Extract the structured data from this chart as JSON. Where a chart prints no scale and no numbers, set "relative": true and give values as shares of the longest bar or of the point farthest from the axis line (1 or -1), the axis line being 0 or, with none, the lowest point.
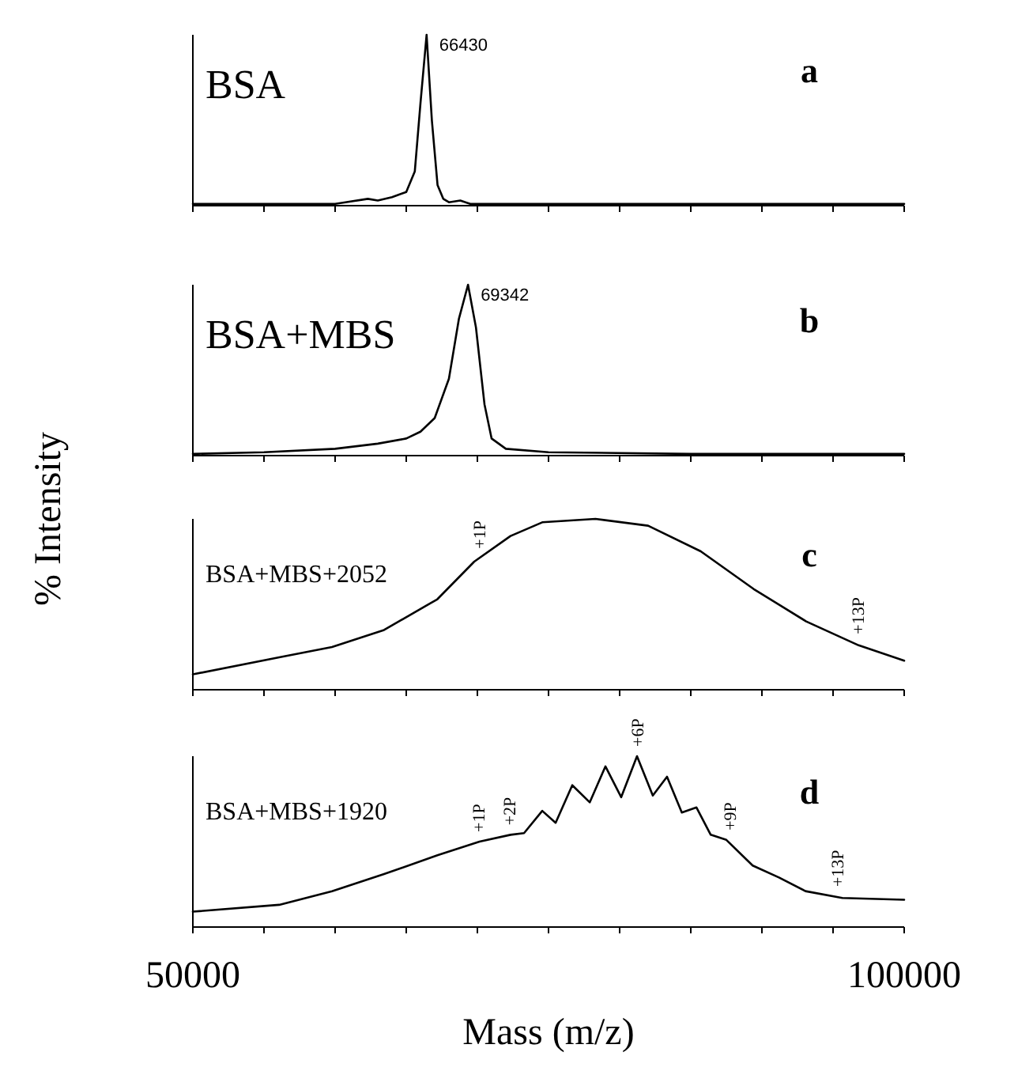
{
  "chart_data": [
    {
      "type": "line",
      "title": "BSA",
      "color": "#000000",
      "relative": true,
      "xlim": [
        50000,
        100000
      ],
      "tick_labels": false,
      "xticks": [
        {
          "value": 50000,
          "label": null
        },
        {
          "value": 55000,
          "label": null
        },
        {
          "value": 60000,
          "label": null
        },
        {
          "value": 65000,
          "label": null
        },
        {
          "value": 70000,
          "label": null
        },
        {
          "value": 75000,
          "label": null
        },
        {
          "value": 80000,
          "label": null
        },
        {
          "value": 85000,
          "label": null
        },
        {
          "value": 90000,
          "label": null
        },
        {
          "value": 95000,
          "label": null
        },
        {
          "value": 100000,
          "label": null
        }
      ],
      "x": [
        50000,
        55000,
        60000,
        62300,
        63000,
        64000,
        65000,
        65600,
        66000,
        66430,
        66800,
        67200,
        67600,
        68000,
        68800,
        69500,
        70000,
        80000,
        90000,
        100000
      ],
      "values": [
        0.01,
        0.01,
        0.01,
        0.04,
        0.03,
        0.05,
        0.08,
        0.2,
        0.6,
        1,
        0.5,
        0.12,
        0.04,
        0.02,
        0.03,
        0.01,
        0.01,
        0.01,
        0.01,
        0.01
      ],
      "annotations": [
        {
          "text": "66430",
          "x": 66430,
          "y": 1
        },
        "a"
      ]
    },
    {
      "type": "line",
      "title": "BSA+MBS",
      "color": "#000000",
      "relative": true,
      "xlim": [
        50000,
        100000
      ],
      "tick_labels": false,
      "xticks": [
        {
          "value": 50000,
          "label": null
        },
        {
          "value": 55000,
          "label": null
        },
        {
          "value": 60000,
          "label": null
        },
        {
          "value": 65000,
          "label": null
        },
        {
          "value": 70000,
          "label": null
        },
        {
          "value": 75000,
          "label": null
        },
        {
          "value": 80000,
          "label": null
        },
        {
          "value": 85000,
          "label": null
        },
        {
          "value": 90000,
          "label": null
        },
        {
          "value": 95000,
          "label": null
        },
        {
          "value": 100000,
          "label": null
        }
      ],
      "x": [
        50000,
        55000,
        60000,
        63000,
        65000,
        66000,
        67000,
        68000,
        68700,
        69342,
        69900,
        70500,
        71000,
        72000,
        75000,
        85000,
        100000
      ],
      "values": [
        0.01,
        0.02,
        0.04,
        0.07,
        0.1,
        0.14,
        0.22,
        0.45,
        0.8,
        1,
        0.75,
        0.3,
        0.1,
        0.04,
        0.02,
        0.01,
        0.01
      ],
      "annotations": [
        {
          "text": "69342",
          "x": 69342,
          "y": 1
        },
        "b"
      ]
    },
    {
      "type": "line",
      "title": "BSA+MBS+2052",
      "ylabel": "% Intensity",
      "color": "#000000",
      "relative": true,
      "xlim": [
        50000,
        100000
      ],
      "tick_labels": false,
      "xticks": [
        {
          "value": 50000,
          "label": null
        },
        {
          "value": 55000,
          "label": null
        },
        {
          "value": 60000,
          "label": null
        },
        {
          "value": 65000,
          "label": null
        },
        {
          "value": 70000,
          "label": null
        },
        {
          "value": 75000,
          "label": null
        },
        {
          "value": 80000,
          "label": null
        },
        {
          "value": 85000,
          "label": null
        },
        {
          "value": 90000,
          "label": null
        },
        {
          "value": 95000,
          "label": null
        },
        {
          "value": 100000,
          "label": null
        }
      ],
      "x": [
        50000,
        56070,
        59780,
        63440,
        67190,
        69780,
        72330,
        74560,
        78300,
        82000,
        85700,
        89410,
        93110,
        96800,
        100000
      ],
      "values": [
        0.09,
        0.19,
        0.25,
        0.35,
        0.53,
        0.75,
        0.9,
        0.98,
        1,
        0.96,
        0.81,
        0.59,
        0.4,
        0.26,
        0.17
      ],
      "annotations": [
        {
          "text": "+1P",
          "x": 70100,
          "y": 0.77
        },
        {
          "text": "+13P",
          "x": 96700,
          "y": 0.27
        },
        "c"
      ]
    },
    {
      "type": "line",
      "title": "BSA+MBS+1920",
      "xlabel": "Mass (m/z)",
      "color": "#000000",
      "relative": true,
      "xlim": [
        50000,
        100000
      ],
      "tick_labels": "x",
      "xticks": [
        {
          "value": 50000,
          "label": "50000"
        },
        {
          "value": 55000,
          "label": null
        },
        {
          "value": 60000,
          "label": null
        },
        {
          "value": 65000,
          "label": null
        },
        {
          "value": 70000,
          "label": null
        },
        {
          "value": 75000,
          "label": null
        },
        {
          "value": 80000,
          "label": null
        },
        {
          "value": 85000,
          "label": null
        },
        {
          "value": 90000,
          "label": null
        },
        {
          "value": 95000,
          "label": null
        },
        {
          "value": 100000,
          "label": "100000"
        }
      ],
      "x": [
        50000,
        56070,
        59780,
        63440,
        67190,
        70150,
        72330,
        73280,
        74560,
        75500,
        76670,
        77900,
        79000,
        80110,
        81220,
        82330,
        83330,
        84370,
        85400,
        86400,
        87500,
        89350,
        91200,
        93060,
        95650,
        100000
      ],
      "values": [
        0.09,
        0.13,
        0.21,
        0.31,
        0.42,
        0.5,
        0.54,
        0.55,
        0.68,
        0.61,
        0.83,
        0.73,
        0.94,
        0.76,
        1,
        0.77,
        0.88,
        0.67,
        0.7,
        0.54,
        0.51,
        0.36,
        0.29,
        0.21,
        0.17,
        0.16
      ],
      "annotations": [
        {
          "text": "+1P",
          "x": 70080,
          "y": 0.5
        },
        {
          "text": "+2P",
          "x": 72200,
          "y": 0.54
        },
        {
          "text": "+6P",
          "x": 81220,
          "y": 1
        },
        {
          "text": "+9P",
          "x": 87700,
          "y": 0.51
        },
        {
          "text": "+13P",
          "x": 95300,
          "y": 0.18
        },
        "d"
      ]
    }
  ]
}
